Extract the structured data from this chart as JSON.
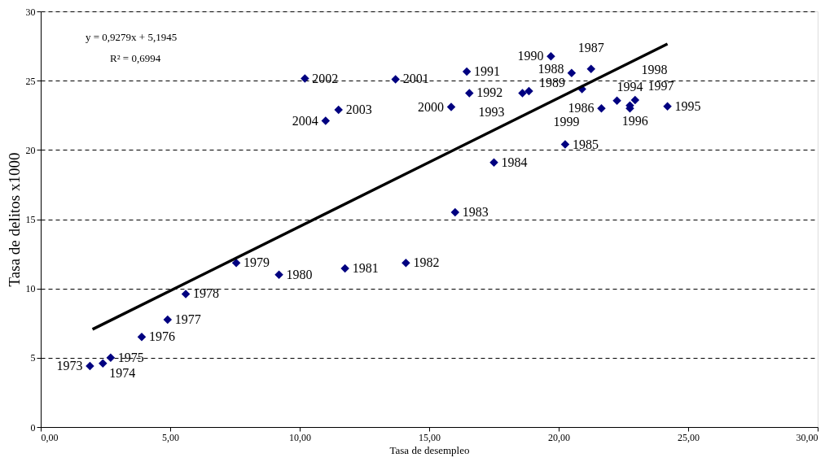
{
  "chart_data": {
    "type": "scatter",
    "xlabel": "Tasa de desempleo",
    "ylabel": "Tasa de delitos x1000",
    "annotations": [
      "y = 0,9279x + 5,1945",
      "R² = 0,6994",
      {
        "text": "1973",
        "x": 1.9,
        "y": 4.4
      },
      {
        "text": "1974",
        "x": 2.4,
        "y": 4.6
      },
      {
        "text": "1975",
        "x": 2.7,
        "y": 5.0
      },
      {
        "text": "1976",
        "x": 3.9,
        "y": 6.5
      },
      {
        "text": "1977",
        "x": 4.9,
        "y": 7.75
      },
      {
        "text": "1978",
        "x": 5.6,
        "y": 9.6
      },
      {
        "text": "1979",
        "x": 7.55,
        "y": 11.85
      },
      {
        "text": "1980",
        "x": 9.2,
        "y": 11.0
      },
      {
        "text": "1981",
        "x": 11.75,
        "y": 11.45
      },
      {
        "text": "1982",
        "x": 14.1,
        "y": 11.85
      },
      {
        "text": "1983",
        "x": 16.0,
        "y": 15.5
      },
      {
        "text": "1984",
        "x": 17.5,
        "y": 19.1
      },
      {
        "text": "1985",
        "x": 20.25,
        "y": 20.4
      },
      {
        "text": "1986",
        "x": 21.65,
        "y": 23.0
      },
      {
        "text": "1987",
        "x": 21.25,
        "y": 25.85
      },
      {
        "text": "1988",
        "x": 20.9,
        "y": 24.4
      },
      {
        "text": "1989",
        "x": 20.5,
        "y": 25.55
      },
      {
        "text": "1990",
        "x": 19.7,
        "y": 26.75
      },
      {
        "text": "1991",
        "x": 16.45,
        "y": 25.65
      },
      {
        "text": "1992",
        "x": 16.55,
        "y": 24.1
      },
      {
        "text": "1993",
        "x": 18.6,
        "y": 24.1
      },
      {
        "text": "1994",
        "x": 22.75,
        "y": 23.0
      },
      {
        "text": "1995",
        "x": 24.2,
        "y": 23.15
      },
      {
        "text": "1996",
        "x": 22.95,
        "y": 23.6
      },
      {
        "text": "1997",
        "x": 22.75,
        "y": 23.2
      },
      {
        "text": "1998",
        "x": 22.25,
        "y": 23.55
      },
      {
        "text": "1999",
        "x": 18.85,
        "y": 24.25
      },
      {
        "text": "2000",
        "x": 15.85,
        "y": 23.1
      },
      {
        "text": "2001",
        "x": 13.7,
        "y": 25.1
      },
      {
        "text": "2002",
        "x": 10.2,
        "y": 25.15
      },
      {
        "text": "2003",
        "x": 11.5,
        "y": 22.9
      },
      {
        "text": "2004",
        "x": 11.0,
        "y": 22.1
      }
    ],
    "xlim": [
      0,
      30
    ],
    "ylim": [
      0,
      30
    ],
    "xticks": [
      {
        "value": 0,
        "label": "0,00"
      },
      {
        "value": 5,
        "label": "5,00"
      },
      {
        "value": 10,
        "label": "10,00"
      },
      {
        "value": 15,
        "label": "15,00"
      },
      {
        "value": 20,
        "label": "20,00"
      },
      {
        "value": 25,
        "label": "25,00"
      },
      {
        "value": 30,
        "label": "30,00"
      }
    ],
    "yticks": [
      0,
      5,
      10,
      15,
      20,
      25,
      30
    ],
    "grid": "y",
    "legend": false,
    "marker": "diamond",
    "series": [
      {
        "type": "scatter",
        "color": "#000080",
        "x": [
          1.9,
          2.4,
          2.7,
          3.9,
          4.9,
          5.6,
          7.55,
          9.2,
          11.75,
          14.1,
          16.0,
          17.5,
          20.25,
          21.65,
          21.25,
          20.9,
          20.5,
          19.7,
          16.45,
          16.55,
          18.6,
          22.75,
          24.2,
          22.95,
          22.75,
          22.25,
          18.85,
          15.85,
          13.7,
          10.2,
          11.5,
          11.0
        ],
        "values": [
          4.4,
          4.6,
          5.0,
          6.5,
          7.75,
          9.6,
          11.85,
          11.0,
          11.45,
          11.85,
          15.5,
          19.1,
          20.4,
          23.0,
          25.85,
          24.4,
          25.55,
          26.75,
          25.65,
          24.1,
          24.1,
          23.0,
          23.15,
          23.6,
          23.2,
          23.55,
          24.25,
          23.1,
          25.1,
          25.15,
          22.9,
          22.1
        ]
      },
      {
        "type": "line",
        "color": "#000000",
        "x": [
          2.0,
          24.2
        ],
        "values": [
          7.05,
          27.65
        ],
        "line_style": "solid",
        "marker": "none"
      }
    ]
  }
}
